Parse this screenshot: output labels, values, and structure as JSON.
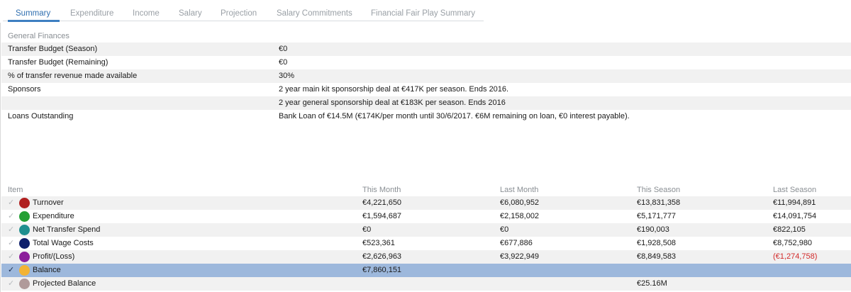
{
  "tabs": [
    "Summary",
    "Expenditure",
    "Income",
    "Salary",
    "Projection",
    "Salary Commitments",
    "Financial Fair Play Summary"
  ],
  "active_tab": "Summary",
  "general": {
    "title": "General Finances",
    "rows": [
      {
        "label": "Transfer Budget (Season)",
        "value": "€0"
      },
      {
        "label": "Transfer Budget (Remaining)",
        "value": "€0"
      },
      {
        "label": "% of transfer revenue made available",
        "value": "30%"
      },
      {
        "label": "Sponsors",
        "value": "2 year main kit sponsorship deal at €417K per season. Ends 2016."
      },
      {
        "label": "",
        "value": "2 year general sponsorship deal at €183K per season. Ends 2016"
      },
      {
        "label": "Loans Outstanding",
        "value": "Bank Loan of €14.5M (€174K/per month until 30/6/2017. €6M remaining on loan, €0 interest payable)."
      }
    ]
  },
  "table": {
    "headers": {
      "item": "Item",
      "this_month": "This Month",
      "last_month": "Last Month",
      "this_season": "This Season",
      "last_season": "Last Season"
    },
    "rows": [
      {
        "name": "Turnover",
        "color": "#b02020",
        "this_month": "€4,221,650",
        "last_month": "€6,080,952",
        "this_season": "€13,831,358",
        "last_season": "€11,994,891",
        "checked": false
      },
      {
        "name": "Expenditure",
        "color": "#25a035",
        "this_month": "€1,594,687",
        "last_month": "€2,158,002",
        "this_season": "€5,171,777",
        "last_season": "€14,091,754",
        "checked": false
      },
      {
        "name": "Net Transfer Spend",
        "color": "#1f8f8f",
        "this_month": "€0",
        "last_month": "€0",
        "this_season": "€190,003",
        "last_season": "€822,105",
        "checked": false
      },
      {
        "name": "Total Wage Costs",
        "color": "#0e1f6b",
        "this_month": "€523,361",
        "last_month": "€677,886",
        "this_season": "€1,928,508",
        "last_season": "€8,752,980",
        "checked": false
      },
      {
        "name": "Profit/(Loss)",
        "color": "#8b1e9a",
        "this_month": "€2,626,963",
        "last_month": "€3,922,949",
        "this_season": "€8,849,583",
        "last_season": "(€1,274,758)",
        "checked": false,
        "last_season_negative": true
      },
      {
        "name": "Balance",
        "color": "#f2b335",
        "this_month": "€7,860,151",
        "last_month": "",
        "this_season": "",
        "last_season": "",
        "checked": true,
        "selected": true
      },
      {
        "name": "Projected Balance",
        "color": "#b09a9a",
        "this_month": "",
        "last_month": "",
        "this_season": "€25.16M",
        "last_season": "",
        "checked": false
      }
    ]
  },
  "icons": {
    "check": "check-icon",
    "legend": "legend-dot-icon"
  }
}
